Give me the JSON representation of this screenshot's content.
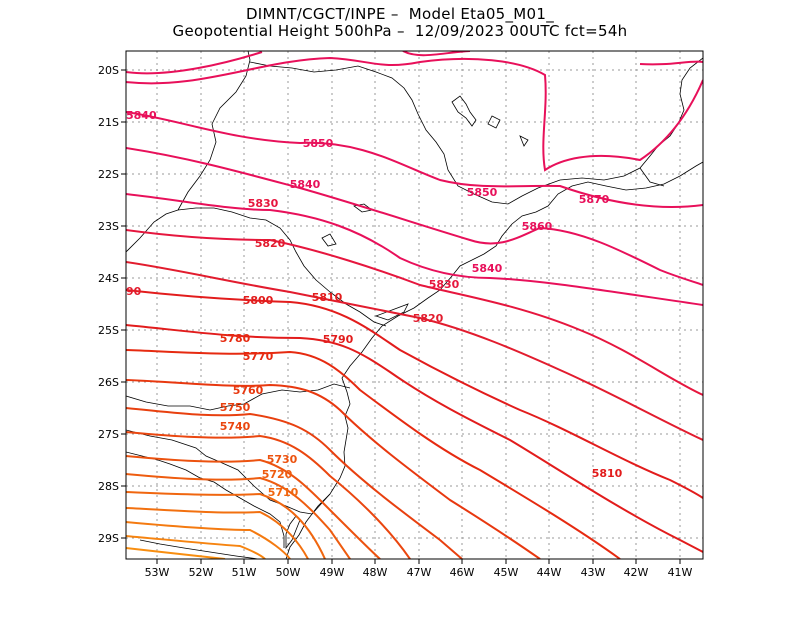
{
  "title": {
    "line1": "DIMNT/CGCT/INPE –  Model Eta05_M01_",
    "line2": "Geopotential Height 500hPa –  12/09/2023 00UTC fct=54h"
  },
  "map": {
    "lon_range": [
      -53.6,
      -40.5
    ],
    "lat_range": [
      -29.4,
      -19.6
    ],
    "lon_ticks": [
      "53W",
      "52W",
      "51W",
      "50W",
      "49W",
      "48W",
      "47W",
      "46W",
      "45W",
      "44W",
      "43W",
      "42W",
      "41W"
    ],
    "lat_ticks": [
      "20S",
      "21S",
      "22S",
      "23S",
      "24S",
      "25S",
      "26S",
      "27S",
      "28S",
      "29S"
    ],
    "grid": true,
    "frame_color": "#000000",
    "coast_color": "#000000",
    "grid_color": "#9a9a9a"
  },
  "contour_labels": [
    {
      "text": "5840",
      "color": "#e8105a"
    },
    {
      "text": "5850",
      "color": "#e8105a"
    },
    {
      "text": "5840",
      "color": "#e8105a"
    },
    {
      "text": "5850",
      "color": "#e8105a"
    },
    {
      "text": "5870",
      "color": "#e8105a"
    },
    {
      "text": "5830",
      "color": "#e6163e"
    },
    {
      "text": "5860",
      "color": "#e8105a"
    },
    {
      "text": "5820",
      "color": "#e21c2e"
    },
    {
      "text": "5840",
      "color": "#e8105a"
    },
    {
      "text": "5830",
      "color": "#e6163e"
    },
    {
      "text": "90",
      "color": "#e21c2e"
    },
    {
      "text": "5800",
      "color": "#e21c1c"
    },
    {
      "text": "5810",
      "color": "#e21c1c"
    },
    {
      "text": "5820",
      "color": "#e21c2e"
    },
    {
      "text": "5790",
      "color": "#e21c1c"
    },
    {
      "text": "5780",
      "color": "#e62a10"
    },
    {
      "text": "5770",
      "color": "#e62a10"
    },
    {
      "text": "5760",
      "color": "#e8380f"
    },
    {
      "text": "5750",
      "color": "#e8400f"
    },
    {
      "text": "5740",
      "color": "#ea460f"
    },
    {
      "text": "5730",
      "color": "#ec520f"
    },
    {
      "text": "5720",
      "color": "#ee5c0f"
    },
    {
      "text": "5710",
      "color": "#f0660f"
    },
    {
      "text": "5810",
      "color": "#e21c1c"
    }
  ]
}
